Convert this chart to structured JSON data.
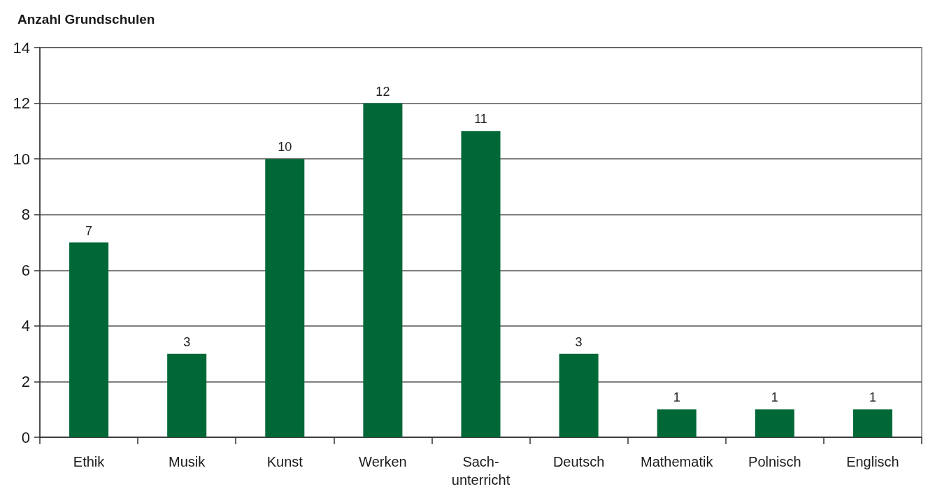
{
  "chart_data": {
    "type": "bar",
    "ylabel": "Anzahl Grundschulen",
    "categories": [
      "Ethik",
      "Musik",
      "Kunst",
      "Werken",
      "Sach-\nunterricht",
      "Deutsch",
      "Mathematik",
      "Polnisch",
      "Englisch"
    ],
    "values": [
      7,
      3,
      10,
      12,
      11,
      3,
      1,
      1,
      1
    ],
    "color": "#006837",
    "ylim": [
      0,
      14
    ],
    "yticks": [
      0,
      2,
      4,
      6,
      8,
      10,
      12,
      14
    ],
    "grid": "y",
    "data_labels": true
  }
}
